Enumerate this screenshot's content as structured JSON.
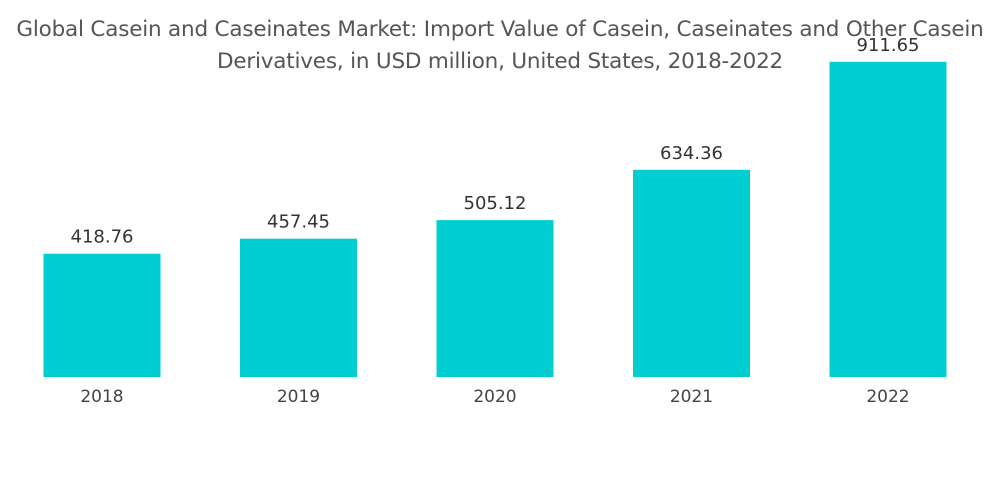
{
  "chart_data": {
    "type": "bar",
    "title_lines": [
      "Global Casein and Caseinates Market: Import Value of Casein, Caseinates and Other Casein",
      "Derivatives, in USD million, United States, 2018-2022"
    ],
    "categories": [
      "2018",
      "2019",
      "2020",
      "2021",
      "2022"
    ],
    "values": [
      418.76,
      457.45,
      505.12,
      634.36,
      911.65
    ],
    "value_labels": [
      "418.76",
      "457.45",
      "505.12",
      "634.36",
      "911.65"
    ],
    "xlabel": "",
    "ylabel": "",
    "ylim": [
      300,
      950
    ],
    "grid": false,
    "legend": "none",
    "bar_color": "#00CED1"
  }
}
